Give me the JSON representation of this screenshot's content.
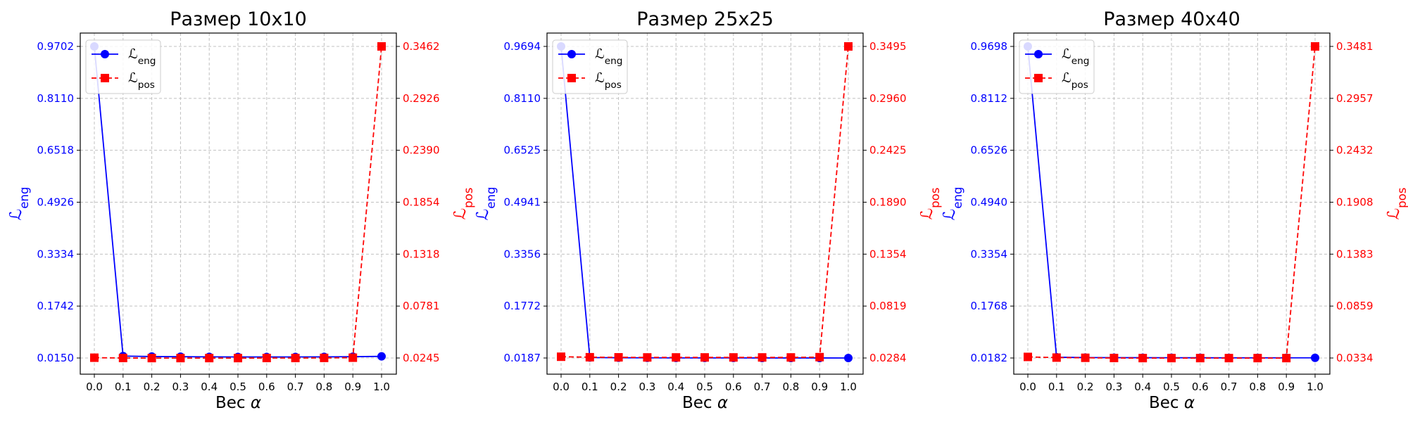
{
  "colors": {
    "eng": "#0000ff",
    "pos": "#ff0000",
    "grid": "#c0c0c0",
    "axis": "#000000"
  },
  "legend": {
    "placement": "top-left"
  },
  "chart_data": [
    {
      "type": "line",
      "title": "Размер 10x10",
      "xlabel": "Вес α",
      "ylabel_left": "ℒeng",
      "ylabel_right": "ℒpos",
      "x": [
        0.0,
        0.1,
        0.2,
        0.3,
        0.4,
        0.5,
        0.6,
        0.7,
        0.8,
        0.9,
        1.0
      ],
      "x_ticks": [
        "0.0",
        "0.1",
        "0.2",
        "0.3",
        "0.4",
        "0.5",
        "0.6",
        "0.7",
        "0.8",
        "0.9",
        "1.0"
      ],
      "grid": true,
      "left_ticks": [
        "0.9702",
        "0.8110",
        "0.6518",
        "0.4926",
        "0.3334",
        "0.1742",
        "0.0150"
      ],
      "right_ticks": [
        "0.3462",
        "0.2926",
        "0.2390",
        "0.1854",
        "0.1318",
        "0.0781",
        "0.0245"
      ],
      "ylim_left": [
        0.015,
        0.9702
      ],
      "ylim_right": [
        0.0245,
        0.3462
      ],
      "series": [
        {
          "name": "ℒeng",
          "axis": "left",
          "style": "solid",
          "marker": "circle",
          "values": [
            0.9702,
            0.021,
            0.0195,
            0.019,
            0.0185,
            0.0182,
            0.0181,
            0.0182,
            0.0185,
            0.019,
            0.02
          ]
        },
        {
          "name": "ℒpos",
          "axis": "right",
          "style": "dashed",
          "marker": "square",
          "values": [
            0.0248,
            0.0245,
            0.0244,
            0.0244,
            0.0244,
            0.0244,
            0.0245,
            0.0245,
            0.0246,
            0.0248,
            0.3462
          ]
        }
      ]
    },
    {
      "type": "line",
      "title": "Размер 25x25",
      "xlabel": "Вес α",
      "ylabel_left": "ℒeng",
      "ylabel_right": "ℒpos",
      "x": [
        0.0,
        0.1,
        0.2,
        0.3,
        0.4,
        0.5,
        0.6,
        0.7,
        0.8,
        0.9,
        1.0
      ],
      "x_ticks": [
        "0.0",
        "0.1",
        "0.2",
        "0.3",
        "0.4",
        "0.5",
        "0.6",
        "0.7",
        "0.8",
        "0.9",
        "1.0"
      ],
      "grid": true,
      "left_ticks": [
        "0.9694",
        "0.8110",
        "0.6525",
        "0.4941",
        "0.3356",
        "0.1772",
        "0.0187"
      ],
      "right_ticks": [
        "0.3495",
        "0.2960",
        "0.2425",
        "0.1890",
        "0.1354",
        "0.0819",
        "0.0284"
      ],
      "ylim_left": [
        0.0187,
        0.9694
      ],
      "ylim_right": [
        0.0284,
        0.3495
      ],
      "series": [
        {
          "name": "ℒeng",
          "axis": "left",
          "style": "solid",
          "marker": "circle",
          "values": [
            0.9694,
            0.02,
            0.0195,
            0.0192,
            0.019,
            0.0189,
            0.0189,
            0.0188,
            0.0188,
            0.0188,
            0.0187
          ]
        },
        {
          "name": "ℒpos",
          "axis": "right",
          "style": "dashed",
          "marker": "square",
          "values": [
            0.0297,
            0.0292,
            0.0291,
            0.029,
            0.029,
            0.029,
            0.029,
            0.029,
            0.029,
            0.0293,
            0.3495
          ]
        }
      ]
    },
    {
      "type": "line",
      "title": "Размер 40x40",
      "xlabel": "Вес α",
      "ylabel_left": "ℒeng",
      "ylabel_right": "ℒpos",
      "x": [
        0.0,
        0.1,
        0.2,
        0.3,
        0.4,
        0.5,
        0.6,
        0.7,
        0.8,
        0.9,
        1.0
      ],
      "x_ticks": [
        "0.0",
        "0.1",
        "0.2",
        "0.3",
        "0.4",
        "0.5",
        "0.6",
        "0.7",
        "0.8",
        "0.9",
        "1.0"
      ],
      "grid": true,
      "left_ticks": [
        "0.9698",
        "0.8112",
        "0.6526",
        "0.4940",
        "0.3354",
        "0.1768",
        "0.0182"
      ],
      "right_ticks": [
        "0.3481",
        "0.2957",
        "0.2432",
        "0.1908",
        "0.1383",
        "0.0859",
        "0.0334"
      ],
      "ylim_left": [
        0.0182,
        0.9698
      ],
      "ylim_right": [
        0.0334,
        0.3481
      ],
      "series": [
        {
          "name": "ℒeng",
          "axis": "left",
          "style": "solid",
          "marker": "circle",
          "values": [
            0.9698,
            0.0205,
            0.0196,
            0.0193,
            0.0191,
            0.019,
            0.0189,
            0.0188,
            0.0188,
            0.0188,
            0.0187
          ]
        },
        {
          "name": "ℒpos",
          "axis": "right",
          "style": "dashed",
          "marker": "square",
          "values": [
            0.0345,
            0.0338,
            0.0336,
            0.0334,
            0.0333,
            0.0333,
            0.0333,
            0.0333,
            0.0333,
            0.0333,
            0.3481
          ]
        }
      ]
    }
  ]
}
